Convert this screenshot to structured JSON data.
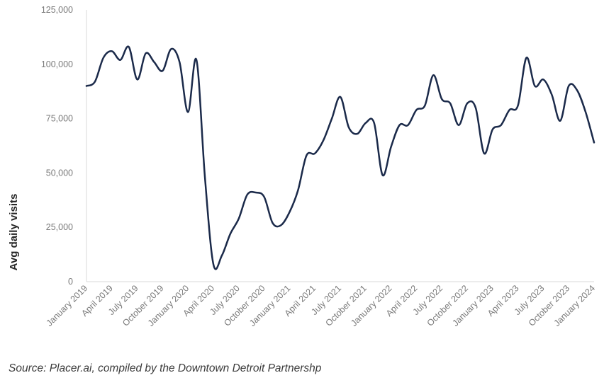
{
  "chart_data": {
    "type": "line",
    "xlabel": "",
    "ylabel": "Avg daily visits",
    "ylim": [
      0,
      125000
    ],
    "yticks": [
      "0",
      "25,000",
      "50,000",
      "75,000",
      "100,000",
      "125,000"
    ],
    "ytick_values": [
      0,
      25000,
      50000,
      75000,
      100000,
      125000
    ],
    "xtick_labels": [
      "January 2019",
      "April 2019",
      "July 2019",
      "October 2019",
      "January 2020",
      "April 2020",
      "July 2020",
      "October 2020",
      "January 2021",
      "April 2021",
      "July 2021",
      "October 2021",
      "January 2022",
      "April 2022",
      "July 2022",
      "October 2022",
      "January 2023",
      "April 2023",
      "July 2023",
      "October 2023",
      "January 2024"
    ],
    "grid": false,
    "line_color": "#1b2a4a",
    "series": [
      {
        "x": [
          "2019-01",
          "2019-02",
          "2019-03",
          "2019-04",
          "2019-05",
          "2019-06",
          "2019-07",
          "2019-08",
          "2019-09",
          "2019-10",
          "2019-11",
          "2019-12",
          "2020-01",
          "2020-02",
          "2020-03",
          "2020-04",
          "2020-05",
          "2020-06",
          "2020-07",
          "2020-08",
          "2020-09",
          "2020-10",
          "2020-11",
          "2020-12",
          "2021-01",
          "2021-02",
          "2021-03",
          "2021-04",
          "2021-05",
          "2021-06",
          "2021-07",
          "2021-08",
          "2021-09",
          "2021-10",
          "2021-11",
          "2021-12",
          "2022-01",
          "2022-02",
          "2022-03",
          "2022-04",
          "2022-05",
          "2022-06",
          "2022-07",
          "2022-08",
          "2022-09",
          "2022-10",
          "2022-11",
          "2022-12",
          "2023-01",
          "2023-02",
          "2023-03",
          "2023-04",
          "2023-05",
          "2023-06",
          "2023-07",
          "2023-08",
          "2023-09",
          "2023-10",
          "2023-11",
          "2023-12",
          "2024-01"
        ],
        "values": [
          90000,
          92000,
          103000,
          106000,
          102000,
          108000,
          93000,
          105000,
          101000,
          97000,
          107000,
          101000,
          78000,
          102000,
          48000,
          8000,
          12000,
          22000,
          29000,
          40000,
          41000,
          39000,
          27000,
          26000,
          32000,
          42000,
          58000,
          59000,
          65000,
          75000,
          85000,
          71000,
          68000,
          73000,
          73000,
          49000,
          62000,
          72000,
          72000,
          79000,
          81000,
          95000,
          84000,
          82000,
          72000,
          82000,
          80000,
          59000,
          70000,
          72000,
          79000,
          81000,
          103000,
          90000,
          93000,
          86000,
          74000,
          90000,
          88000,
          78000,
          64000
        ]
      }
    ]
  },
  "source": "Source: Placer.ai, compiled by the Downtown Detroit Partnershp"
}
